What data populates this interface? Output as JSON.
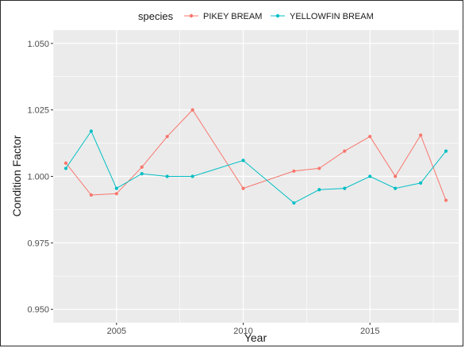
{
  "chart_data": {
    "type": "line",
    "title": "",
    "xlabel": "Year",
    "ylabel": "Condition Factor",
    "xlim": [
      2002.5,
      2018.5
    ],
    "ylim": [
      0.945,
      1.055
    ],
    "x_ticks": [
      2005,
      2010,
      2015
    ],
    "x_tick_labels": [
      "2005",
      "2010",
      "2015"
    ],
    "y_ticks": [
      0.95,
      0.975,
      1.0,
      1.025,
      1.05
    ],
    "y_tick_labels": [
      "0.950",
      "0.975",
      "1.000",
      "1.025",
      "1.050"
    ],
    "grid": true,
    "legend": {
      "position": "top",
      "title": "species",
      "entries": [
        "PIKEY BREAM",
        "YELLOWFIN BREAM"
      ]
    },
    "series": [
      {
        "name": "PIKEY BREAM",
        "color": "#F8766D",
        "x": [
          2003,
          2004,
          2005,
          2006,
          2007,
          2008,
          2010,
          2012,
          2013,
          2014,
          2015,
          2016,
          2017,
          2018
        ],
        "y": [
          1.005,
          0.993,
          0.9935,
          1.0035,
          1.015,
          1.025,
          0.9955,
          1.002,
          1.003,
          1.0095,
          1.015,
          1.0,
          1.0155,
          0.991
        ]
      },
      {
        "name": "YELLOWFIN BREAM",
        "color": "#00BFC4",
        "x": [
          2003,
          2004,
          2005,
          2006,
          2007,
          2008,
          2010,
          2012,
          2013,
          2014,
          2015,
          2016,
          2017,
          2018
        ],
        "y": [
          1.003,
          1.017,
          0.9955,
          1.001,
          1.0,
          1.0,
          1.006,
          0.99,
          0.995,
          0.9955,
          1.0,
          0.9955,
          0.9975,
          1.0095
        ]
      }
    ]
  }
}
